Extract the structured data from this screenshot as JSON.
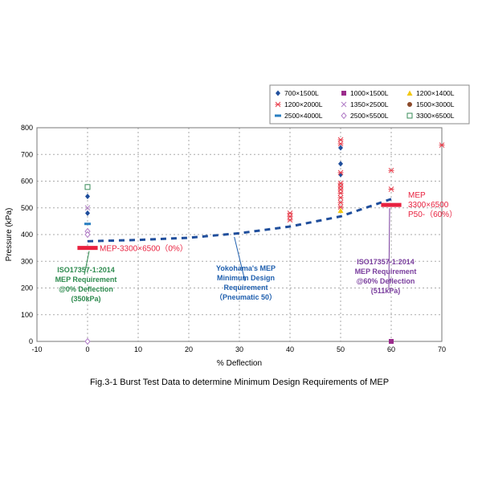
{
  "chart_data": {
    "type": "scatter",
    "title": "Fig.3-1  Burst Test Data to determine Minimum Design Requirements of MEP",
    "xlabel": "% Deflection",
    "ylabel": "Pressure (kPa)",
    "xlim": [
      -10,
      70
    ],
    "ylim": [
      0,
      800
    ],
    "xticks": [
      -10,
      0,
      10,
      20,
      30,
      40,
      50,
      60,
      70
    ],
    "yticks": [
      0,
      100,
      200,
      300,
      400,
      500,
      600,
      700,
      800
    ],
    "grid": true,
    "legend_placement": "top-right",
    "series": [
      {
        "name": "700×1500L",
        "marker": "diamond",
        "color": "#1f4e9c",
        "points": [
          [
            0,
            543
          ],
          [
            0,
            480
          ],
          [
            50,
            725
          ],
          [
            50,
            665
          ],
          [
            50,
            625
          ]
        ]
      },
      {
        "name": "1000×1500L",
        "marker": "square",
        "color": "#9b2c8c",
        "points": [
          [
            60,
            0
          ]
        ]
      },
      {
        "name": "1200×1400L",
        "marker": "triangle",
        "color": "#f2c811",
        "points": [
          [
            50,
            490
          ]
        ]
      },
      {
        "name": "1200×2000L",
        "marker": "asterisk",
        "color": "#e8414f",
        "points": [
          [
            40,
            480
          ],
          [
            40,
            468
          ],
          [
            40,
            455
          ],
          [
            50,
            755
          ],
          [
            50,
            740
          ],
          [
            50,
            632
          ],
          [
            50,
            592
          ],
          [
            50,
            580
          ],
          [
            50,
            568
          ],
          [
            50,
            555
          ],
          [
            50,
            538
          ],
          [
            50,
            520
          ],
          [
            50,
            503
          ],
          [
            60,
            640
          ],
          [
            60,
            570
          ],
          [
            70,
            735
          ]
        ]
      },
      {
        "name": "1350×2500L",
        "marker": "x",
        "color": "#b07cc6",
        "points": [
          [
            0,
            500
          ]
        ]
      },
      {
        "name": "1500×3000L",
        "marker": "circle",
        "color": "#8b4a2b",
        "points": []
      },
      {
        "name": "2500×4000L",
        "marker": "dash",
        "color": "#2a7fc1",
        "points": [
          [
            0,
            440
          ]
        ]
      },
      {
        "name": "2500×5500L",
        "marker": "open-diamond",
        "color": "#b07cc6",
        "points": [
          [
            0,
            412
          ],
          [
            0,
            400
          ],
          [
            0,
            0
          ]
        ]
      },
      {
        "name": "3300×6500L",
        "marker": "open-square",
        "color": "#3a8c5a",
        "points": [
          [
            0,
            578
          ]
        ]
      }
    ],
    "curve": {
      "color": "#1f4e9c",
      "points": [
        [
          0,
          375
        ],
        [
          10,
          380
        ],
        [
          20,
          388
        ],
        [
          30,
          405
        ],
        [
          40,
          430
        ],
        [
          50,
          468
        ],
        [
          60,
          533
        ]
      ]
    },
    "requirements": [
      {
        "x": [
          -2,
          2
        ],
        "y": 350,
        "label": "MEP-3300×6500（0%）",
        "color": "#e8213f"
      },
      {
        "x": [
          58,
          62
        ],
        "y": 511,
        "label_lines": [
          "MEP",
          "3300×6500",
          "P50-（60%）"
        ],
        "color": "#e8213f"
      }
    ],
    "annotations": [
      {
        "lines": [
          "ISO17357-1:2014",
          "MEP Requirement",
          "@0% Deflection",
          "(350kPa)"
        ],
        "color": "#2e8b4f"
      },
      {
        "lines": [
          "Yokohama's MEP",
          "Minimum Design",
          "Requirement",
          "（Pneumatic 50）"
        ],
        "color": "#1f5fae"
      },
      {
        "lines": [
          "ISO17357-1:2014",
          "MEP Requirement",
          "@60% Deflection",
          "(511kPa)"
        ],
        "color": "#7a3e9e"
      }
    ]
  }
}
